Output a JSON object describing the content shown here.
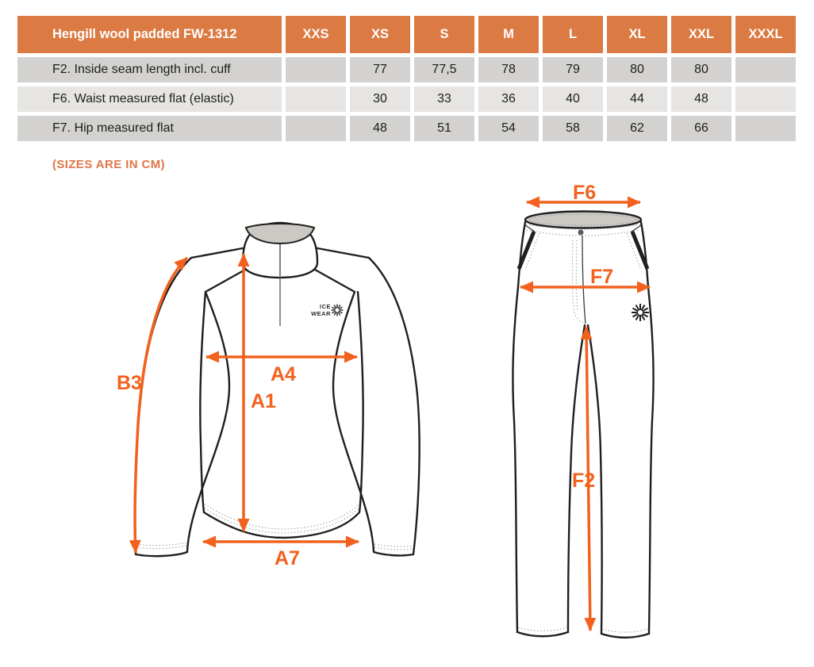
{
  "table": {
    "title": "Hengill wool padded FW-1312",
    "size_columns": [
      "XXS",
      "XS",
      "S",
      "M",
      "L",
      "XL",
      "XXL",
      "XXXL"
    ],
    "rows": [
      {
        "label": "F2. Inside seam length incl. cuff",
        "values": [
          "",
          "77",
          "77,5",
          "78",
          "79",
          "80",
          "80",
          ""
        ]
      },
      {
        "label": "F6. Waist measured flat (elastic)",
        "values": [
          "",
          "30",
          "33",
          "36",
          "40",
          "44",
          "48",
          ""
        ]
      },
      {
        "label": "F7. Hip measured flat",
        "values": [
          "",
          "48",
          "51",
          "54",
          "58",
          "62",
          "66",
          ""
        ]
      }
    ]
  },
  "note": {
    "text": "(SIZES ARE IN CM)"
  },
  "sweater": {
    "labels": {
      "b3": "B3",
      "a4": "A4",
      "a1": "A1",
      "a7": "A7"
    },
    "logo": {
      "line1": "ICE",
      "line2": "WEAR",
      "icon": "snowflake-icon"
    }
  },
  "pants": {
    "labels": {
      "f6": "F6",
      "f7": "F7",
      "f2": "F2"
    },
    "logo": {
      "icon": "snowflake-icon"
    }
  },
  "colors": {
    "header_bg": "#DC7A43",
    "row_dark": "#D3D2D0",
    "row_light": "#E6E5E3",
    "note_text": "#E1764A",
    "arrow": "#F2611D",
    "outline": "#1F1F1F",
    "inner_gray": "#CCC9C5"
  }
}
